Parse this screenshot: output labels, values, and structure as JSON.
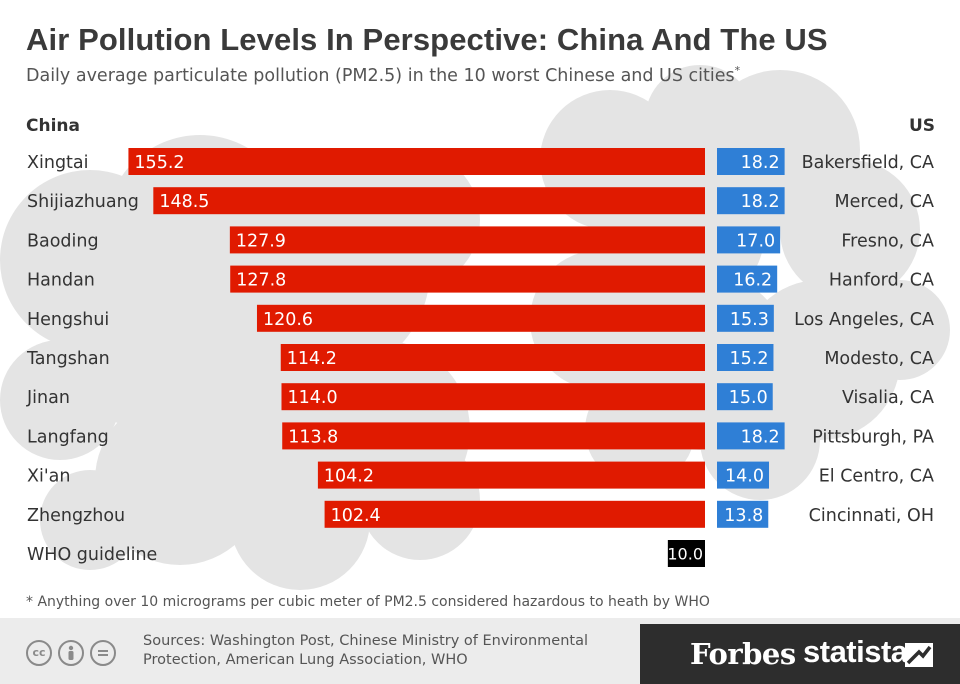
{
  "header": {
    "title": "Air Pollution Levels In Perspective: China And The US",
    "subtitle": "Daily average particulate pollution (PM2.5) in the 10 worst Chinese and US cities",
    "subtitle_marker": "*"
  },
  "chart_data": {
    "type": "bar",
    "title": "Air Pollution Levels In Perspective: China And The US",
    "subtitle": "Daily average particulate pollution (PM2.5) in the 10 worst Chinese and US cities",
    "china": {
      "heading": "China",
      "color": "#e01a00",
      "cities": [
        "Xingtai",
        "Shijiazhuang",
        "Baoding",
        "Handan",
        "Hengshui",
        "Tangshan",
        "Jinan",
        "Langfang",
        "Xi'an",
        "Zhengzhou"
      ],
      "values": [
        155.2,
        148.5,
        127.9,
        127.8,
        120.6,
        114.2,
        114.0,
        113.8,
        104.2,
        102.4
      ],
      "value_labels": [
        "155.2",
        "148.5",
        "127.9",
        "127.8",
        "120.6",
        "114.2",
        "114.0",
        "113.8",
        "104.2",
        "102.4"
      ]
    },
    "us": {
      "heading": "US",
      "color": "#2f7fd6",
      "cities": [
        "Bakersfield, CA",
        "Merced, CA",
        "Fresno, CA",
        "Hanford, CA",
        "Los Angeles, CA",
        "Modesto, CA",
        "Visalia, CA",
        "Pittsburgh, PA",
        "El Centro, CA",
        "Cincinnati, OH"
      ],
      "values": [
        18.2,
        18.2,
        17.0,
        16.2,
        15.3,
        15.2,
        15.0,
        18.2,
        14.0,
        13.8
      ],
      "value_labels": [
        "18.2",
        "18.2",
        "17.0",
        "16.2",
        "15.3",
        "15.2",
        "15.0",
        "18.2",
        "14.0",
        "13.8"
      ]
    },
    "guideline": {
      "label": "WHO guideline",
      "value": 10.0,
      "value_label": "10.0",
      "color": "#000000"
    }
  },
  "footnote": "* Anything over 10 micrograms per cubic meter of PM2.5 considered hazardous to heath by WHO",
  "footer": {
    "sources": "Sources: Washington Post, Chinese Ministry of Environmental Protection, American Lung Association, WHO",
    "license_icons": [
      "cc",
      "by",
      "nd"
    ],
    "brand_forbes": "Forbes",
    "brand_statista": "statista"
  }
}
